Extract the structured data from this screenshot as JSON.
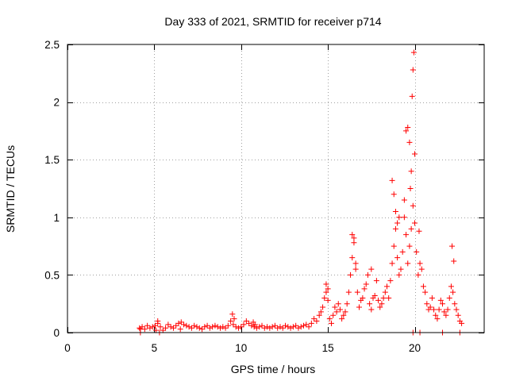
{
  "chart_data": {
    "type": "scatter",
    "title": "Day 333 of 2021, SRMTID for receiver p714",
    "xlabel": "GPS time / hours",
    "ylabel": "SRMTID / TECUs",
    "xlim": [
      0,
      24
    ],
    "ylim": [
      0,
      2.5
    ],
    "x_ticks": [
      0,
      5,
      10,
      15,
      20
    ],
    "y_ticks": [
      0,
      0.5,
      1,
      1.5,
      2,
      2.5
    ],
    "x_tick_labels": [
      "0",
      "5",
      "10",
      "15",
      "20"
    ],
    "y_tick_labels": [
      "0",
      "0.5",
      "1",
      "1.5",
      "2",
      "2.5"
    ],
    "grid": true,
    "grid_style": "dotted",
    "marker": "+",
    "marker_color": "#ff0000",
    "series": [
      {
        "name": "SRMTID",
        "x": [
          4.15,
          4.3,
          4.45,
          4.6,
          4.75,
          4.9,
          5.05,
          5.2,
          5.35,
          5.5,
          5.65,
          5.8,
          5.95,
          6.1,
          6.25,
          6.4,
          6.55,
          6.7,
          6.85,
          7.0,
          7.15,
          7.3,
          7.45,
          7.6,
          7.75,
          7.9,
          8.05,
          8.2,
          8.35,
          8.5,
          8.65,
          8.8,
          8.95,
          9.1,
          9.25,
          9.4,
          9.55,
          9.7,
          9.85,
          10.0,
          10.15,
          10.3,
          10.45,
          10.6,
          10.75,
          10.9,
          11.05,
          11.2,
          11.35,
          11.5,
          11.65,
          11.8,
          11.95,
          12.1,
          12.25,
          12.4,
          12.55,
          12.7,
          12.85,
          13.0,
          13.15,
          13.3,
          13.45,
          13.6,
          13.75,
          13.9,
          14.05,
          14.2,
          14.35,
          14.5,
          14.6,
          14.7,
          14.8,
          14.9,
          15.0,
          15.1,
          15.2,
          15.3,
          15.4,
          15.5,
          15.6,
          15.7,
          15.8,
          15.9,
          16.0,
          16.1,
          16.2,
          16.3,
          16.4,
          16.5,
          16.6,
          16.7,
          16.8,
          16.9,
          17.0,
          17.1,
          17.2,
          17.3,
          17.4,
          17.5,
          17.6,
          17.7,
          17.8,
          17.9,
          18.0,
          18.1,
          18.2,
          18.3,
          18.4,
          18.5,
          18.6,
          18.7,
          18.8,
          18.9,
          19.0,
          19.1,
          19.2,
          19.3,
          19.4,
          19.5,
          19.6,
          19.7,
          19.8,
          19.9,
          20.0,
          20.1,
          20.2,
          20.3,
          20.4,
          20.5,
          20.6,
          20.7,
          20.8,
          20.9,
          21.0,
          21.1,
          21.2,
          21.3,
          21.4,
          21.5,
          21.6,
          21.7,
          21.8,
          21.9,
          22.0,
          22.1,
          22.2,
          22.3,
          22.4,
          22.5,
          22.6,
          22.7,
          4.2,
          5.1,
          5.2,
          6.5,
          9.5,
          9.6,
          10.7,
          10.8,
          14.9,
          15.0,
          16.4,
          16.5,
          16.6,
          17.5,
          18.7,
          18.8,
          18.9,
          19.0,
          19.1,
          19.4,
          19.5,
          19.6,
          19.7,
          19.75,
          19.8,
          19.85,
          19.9,
          19.95,
          20.0,
          20.25,
          22.15,
          22.25,
          4.2,
          5.3,
          19.9,
          20.3,
          21.6,
          22.6
        ],
        "y": [
          0.04,
          0.05,
          0.03,
          0.06,
          0.04,
          0.05,
          0.06,
          0.1,
          0.05,
          0.02,
          0.04,
          0.07,
          0.05,
          0.04,
          0.06,
          0.08,
          0.09,
          0.07,
          0.06,
          0.05,
          0.04,
          0.06,
          0.05,
          0.04,
          0.03,
          0.05,
          0.06,
          0.04,
          0.05,
          0.06,
          0.05,
          0.04,
          0.05,
          0.04,
          0.06,
          0.1,
          0.07,
          0.05,
          0.04,
          0.05,
          0.07,
          0.1,
          0.08,
          0.06,
          0.05,
          0.04,
          0.05,
          0.06,
          0.04,
          0.05,
          0.04,
          0.05,
          0.06,
          0.04,
          0.05,
          0.04,
          0.06,
          0.05,
          0.04,
          0.05,
          0.06,
          0.04,
          0.05,
          0.06,
          0.07,
          0.05,
          0.08,
          0.12,
          0.1,
          0.15,
          0.18,
          0.22,
          0.3,
          0.35,
          0.28,
          0.12,
          0.08,
          0.15,
          0.22,
          0.18,
          0.25,
          0.2,
          0.12,
          0.15,
          0.18,
          0.25,
          0.35,
          0.5,
          0.65,
          0.78,
          0.55,
          0.35,
          0.22,
          0.28,
          0.3,
          0.38,
          0.42,
          0.5,
          0.25,
          0.2,
          0.3,
          0.32,
          0.45,
          0.28,
          0.22,
          0.25,
          0.3,
          0.35,
          0.4,
          0.3,
          0.45,
          0.6,
          0.75,
          0.9,
          0.65,
          0.5,
          0.55,
          0.7,
          1.0,
          0.85,
          0.6,
          0.75,
          0.9,
          1.1,
          0.95,
          0.7,
          0.5,
          0.6,
          0.55,
          0.4,
          0.35,
          0.25,
          0.2,
          0.22,
          0.3,
          0.2,
          0.15,
          0.12,
          0.2,
          0.28,
          0.25,
          0.18,
          0.15,
          0.2,
          0.3,
          0.4,
          0.35,
          0.25,
          0.2,
          0.15,
          0.1,
          0.08,
          0.03,
          0.02,
          0.08,
          0.03,
          0.16,
          0.12,
          0.09,
          0.07,
          0.42,
          0.38,
          0.85,
          0.82,
          0.6,
          0.55,
          1.32,
          1.2,
          1.05,
          0.95,
          1.0,
          1.15,
          1.75,
          1.78,
          1.65,
          1.25,
          1.4,
          2.05,
          2.28,
          2.43,
          1.55,
          0.88,
          0.75,
          0.62,
          0.0,
          0.0,
          0.0,
          0.0,
          0.0,
          0.0
        ]
      }
    ]
  }
}
